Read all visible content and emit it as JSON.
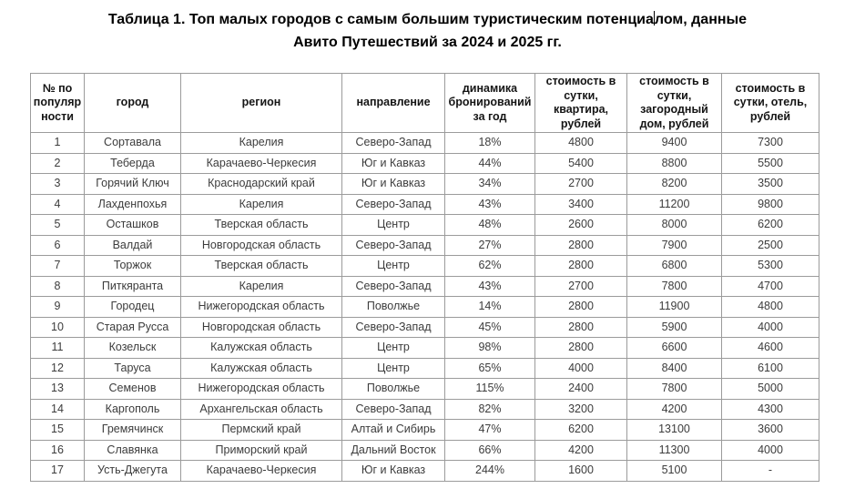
{
  "title": {
    "line1_before_caret": "Таблица 1. Топ малых городов с самым большим туристическим потенциа",
    "line1_after_caret": "лом, данные",
    "line2": "Авито Путешествий за 2024 и 2025 гг."
  },
  "chart_data": {
    "type": "table",
    "title": "Таблица 1. Топ малых городов с самым большим туристическим потенциалом, данные Авито Путешествий за 2024 и 2025 гг.",
    "columns": [
      "№ по популярности",
      "город",
      "регион",
      "направление",
      "динамика бронирований за год",
      "стоимость в сутки, квартира, рублей",
      "стоимость в сутки, загородный дом, рублей",
      "стоимость в сутки, отель, рублей"
    ],
    "rows": [
      [
        "1",
        "Сортавала",
        "Карелия",
        "Северо-Запад",
        "18%",
        "4800",
        "9400",
        "7300"
      ],
      [
        "2",
        "Теберда",
        "Карачаево-Черкесия",
        "Юг и Кавказ",
        "44%",
        "5400",
        "8800",
        "5500"
      ],
      [
        "3",
        "Горячий Ключ",
        "Краснодарский край",
        "Юг и Кавказ",
        "34%",
        "2700",
        "8200",
        "3500"
      ],
      [
        "4",
        "Лахденпохья",
        "Карелия",
        "Северо-Запад",
        "43%",
        "3400",
        "11200",
        "9800"
      ],
      [
        "5",
        "Осташков",
        "Тверская область",
        "Центр",
        "48%",
        "2600",
        "8000",
        "6200"
      ],
      [
        "6",
        "Валдай",
        "Новгородская область",
        "Северо-Запад",
        "27%",
        "2800",
        "7900",
        "2500"
      ],
      [
        "7",
        "Торжок",
        "Тверская область",
        "Центр",
        "62%",
        "2800",
        "6800",
        "5300"
      ],
      [
        "8",
        "Питкяранта",
        "Карелия",
        "Северо-Запад",
        "43%",
        "2700",
        "7800",
        "4700"
      ],
      [
        "9",
        "Городец",
        "Нижегородская область",
        "Поволжье",
        "14%",
        "2800",
        "11900",
        "4800"
      ],
      [
        "10",
        "Старая Русса",
        "Новгородская область",
        "Северо-Запад",
        "45%",
        "2800",
        "5900",
        "4000"
      ],
      [
        "11",
        "Козельск",
        "Калужская область",
        "Центр",
        "98%",
        "2800",
        "6600",
        "4600"
      ],
      [
        "12",
        "Таруса",
        "Калужская область",
        "Центр",
        "65%",
        "4000",
        "8400",
        "6100"
      ],
      [
        "13",
        "Семенов",
        "Нижегородская область",
        "Поволжье",
        "115%",
        "2400",
        "7800",
        "5000"
      ],
      [
        "14",
        "Каргополь",
        "Архангельская область",
        "Северо-Запад",
        "82%",
        "3200",
        "4200",
        "4300"
      ],
      [
        "15",
        "Гремячинск",
        "Пермский край",
        "Алтай и Сибирь",
        "47%",
        "6200",
        "13100",
        "3600"
      ],
      [
        "16",
        "Славянка",
        "Приморский край",
        "Дальний Восток",
        "66%",
        "4200",
        "11300",
        "4000"
      ],
      [
        "17",
        "Усть-Джегута",
        "Карачаево-Черкесия",
        "Юг и Кавказ",
        "244%",
        "1600",
        "5100",
        "-"
      ]
    ]
  },
  "colors": {
    "background": "#ffffff",
    "border": "#9b9b9b",
    "title_text": "#000000",
    "header_text": "#151515",
    "cell_text": "#3c3c3c"
  }
}
